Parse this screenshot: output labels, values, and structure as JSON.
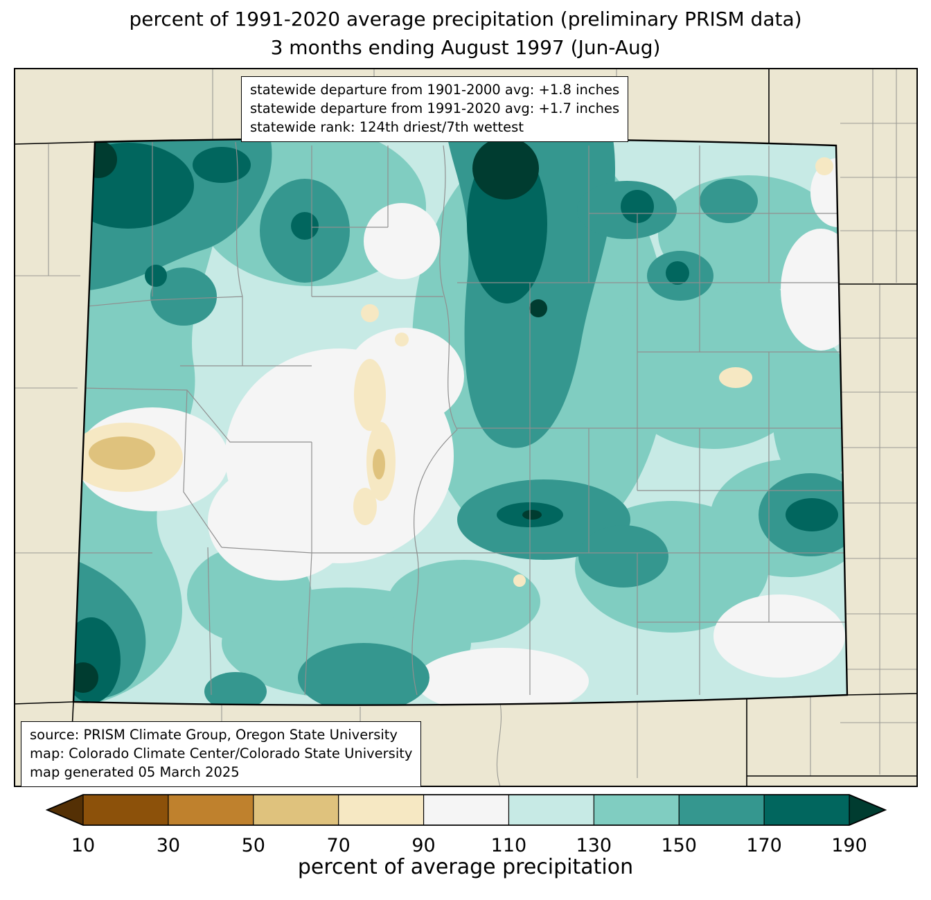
{
  "title": {
    "line1": "percent of 1991-2020 average precipitation (preliminary PRISM data)",
    "line2": "3 months ending August 1997 (Jun-Aug)"
  },
  "stats_box": {
    "lines": [
      "statewide departure from 1901-2000 avg: +1.8 inches",
      "statewide departure from 1991-2020 avg: +1.7 inches",
      "statewide rank: 124th driest/7th wettest"
    ]
  },
  "source_box": {
    "lines": [
      "source: PRISM Climate Group, Oregon State University",
      "map: Colorado Climate Center/Colorado State University",
      "map generated 05 March 2025"
    ]
  },
  "colorbar": {
    "label": "percent of average precipitation",
    "ticks": [
      "10",
      "30",
      "50",
      "70",
      "90",
      "110",
      "130",
      "150",
      "170",
      "190"
    ],
    "segment_colors": [
      "#8c510a",
      "#bf812d",
      "#dfc27d",
      "#f6e8c3",
      "#f5f5f5",
      "#c7eae5",
      "#80cdc1",
      "#35978f",
      "#01665e"
    ],
    "arrow_left_color": "#543005",
    "arrow_right_color": "#003c30"
  },
  "map": {
    "region": "Colorado",
    "background_color": "#ece7d2",
    "state_border_color": "#000000",
    "county_line_color": "#8f8f8f"
  },
  "chart_data": {
    "type": "heatmap",
    "title": "percent of 1991-2020 average precipitation (preliminary PRISM data), 3 months ending August 1997 (Jun-Aug)",
    "region": "Colorado",
    "colorbar_label": "percent of average precipitation",
    "colorbar_ticks": [
      10,
      30,
      50,
      70,
      90,
      110,
      130,
      150,
      170,
      190
    ],
    "colorbar_colors_low_to_high": [
      "#543005",
      "#8c510a",
      "#bf812d",
      "#dfc27d",
      "#f6e8c3",
      "#f5f5f5",
      "#c7eae5",
      "#80cdc1",
      "#35978f",
      "#01665e",
      "#003c30"
    ],
    "statewide_departure_from_1901_2000_avg_inches": 1.8,
    "statewide_departure_from_1991_2020_avg_inches": 1.7,
    "statewide_rank": "124th driest/7th wettest"
  }
}
